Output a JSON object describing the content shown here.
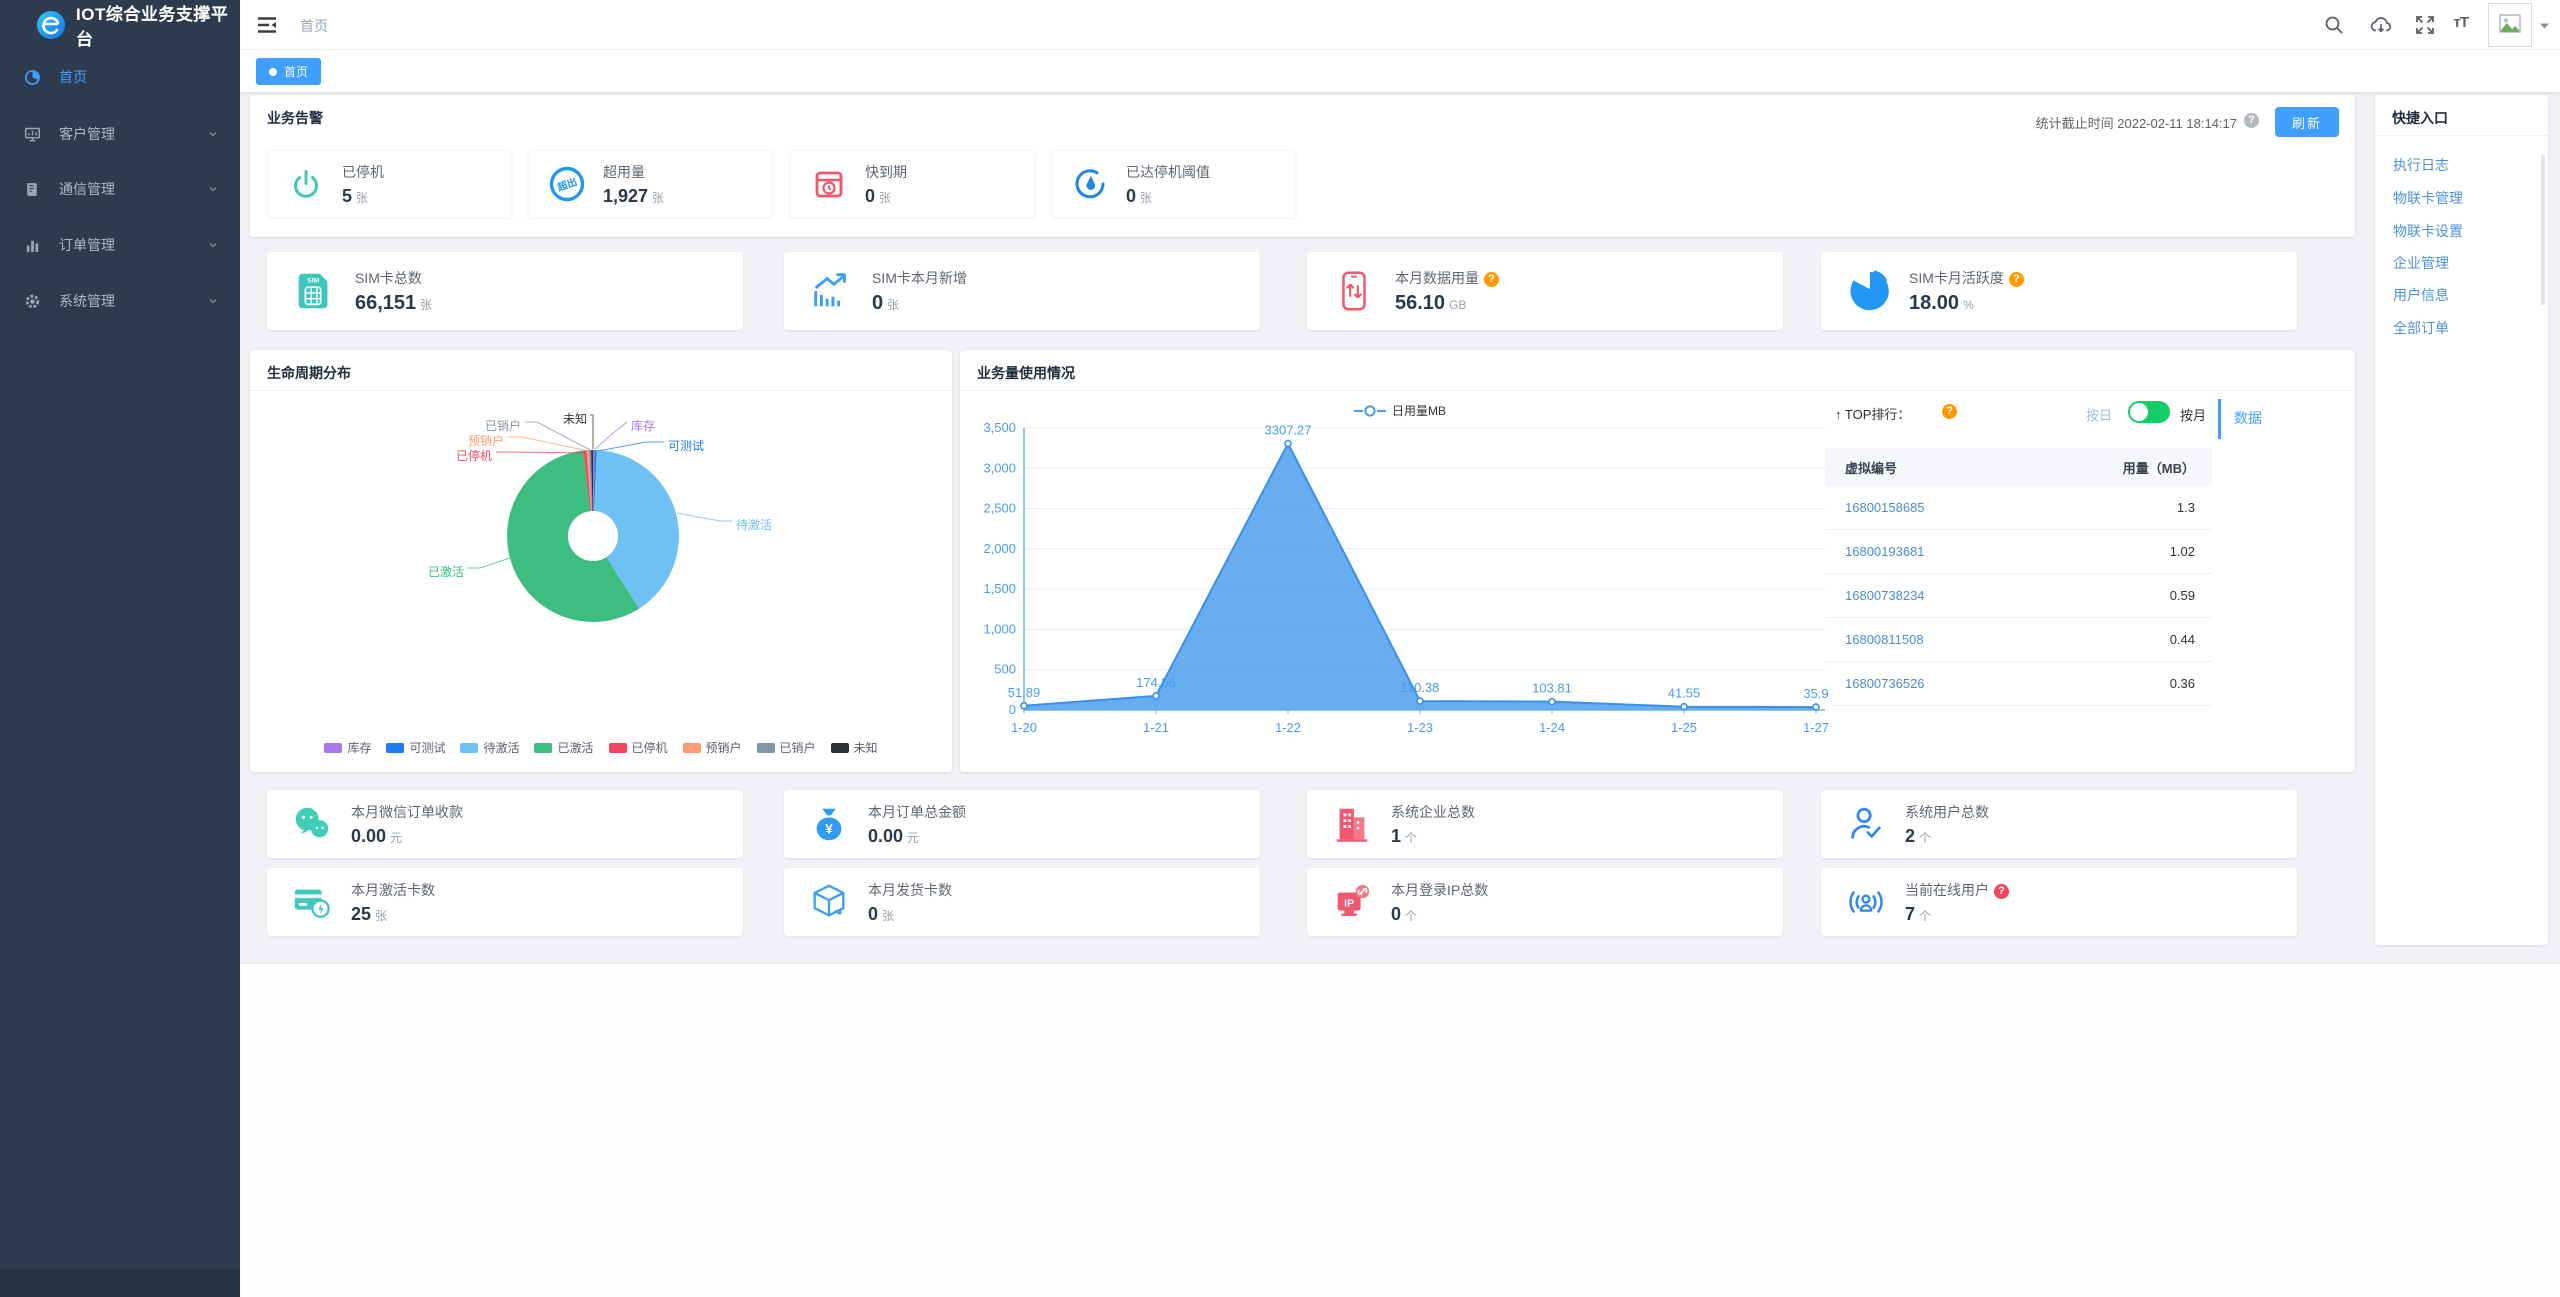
{
  "app": {
    "title": "IOT综合业务支撑平台"
  },
  "topbar": {
    "breadcrumb": "首页",
    "font_icon_text": "тT"
  },
  "tab": {
    "active_label": "首页"
  },
  "sidebar": {
    "items": [
      {
        "label": "首页"
      },
      {
        "label": "客户管理"
      },
      {
        "label": "通信管理"
      },
      {
        "label": "订单管理"
      },
      {
        "label": "系统管理"
      }
    ]
  },
  "alerts": {
    "title": "业务告警",
    "stat_time_label": "统计截止时间",
    "stat_time": "2022-02-11 18:14:17",
    "refresh_label": "刷新",
    "cards": [
      {
        "label": "已停机",
        "value": "5",
        "unit": "张"
      },
      {
        "label": "超用量",
        "value": "1,927",
        "unit": "张",
        "stamp_text": "超出"
      },
      {
        "label": "快到期",
        "value": "0",
        "unit": "张"
      },
      {
        "label": "已达停机阈值",
        "value": "0",
        "unit": "张"
      }
    ]
  },
  "sim_stats": {
    "cards": [
      {
        "label": "SIM卡总数",
        "value": "66,151",
        "unit": "张",
        "icon_text": "SIM"
      },
      {
        "label": "SIM卡本月新增",
        "value": "0",
        "unit": "张"
      },
      {
        "label": "本月数据用量",
        "value": "56.10",
        "unit": "GB",
        "has_help": true
      },
      {
        "label": "SIM卡月活跃度",
        "value": "18.00",
        "unit": "%",
        "has_help": true
      }
    ]
  },
  "top_rank": {
    "title": "↑ TOP排行：",
    "toggle_left": "按日",
    "toggle_right": "按月",
    "tab": "数据",
    "col_id": "虚拟编号",
    "col_usage": "用量（MB）",
    "rows": [
      {
        "id": "16800158685",
        "value": "1.3"
      },
      {
        "id": "16800193681",
        "value": "1.02"
      },
      {
        "id": "16800738234",
        "value": "0.59"
      },
      {
        "id": "16800811508",
        "value": "0.44"
      },
      {
        "id": "16800736526",
        "value": "0.36"
      }
    ]
  },
  "bottom_stats": {
    "row1": [
      {
        "label": "本月微信订单收款",
        "value": "0.00",
        "unit": "元"
      },
      {
        "label": "本月订单总金额",
        "value": "0.00",
        "unit": "元",
        "icon_text": "¥"
      },
      {
        "label": "系统企业总数",
        "value": "1",
        "unit": "个"
      },
      {
        "label": "系统用户总数",
        "value": "2",
        "unit": "个"
      }
    ],
    "row2": [
      {
        "label": "本月激活卡数",
        "value": "25",
        "unit": "张"
      },
      {
        "label": "本月发货卡数",
        "value": "0",
        "unit": "张"
      },
      {
        "label": "本月登录IP总数",
        "value": "0",
        "unit": "个",
        "icon_text": "IP"
      },
      {
        "label": "当前在线用户",
        "value": "7",
        "unit": "个"
      }
    ]
  },
  "quick_entry": {
    "title": "快捷入口",
    "links": [
      "执行日志",
      "物联卡管理",
      "物联卡设置",
      "企业管理",
      "用户信息",
      "全部订单"
    ]
  },
  "chart_data": [
    {
      "type": "pie",
      "title": "生命周期分布",
      "labels": [
        "库存",
        "可测试",
        "待激活",
        "已激活",
        "已停机",
        "预销户",
        "已销户",
        "未知"
      ],
      "values": [
        0.3,
        0.4,
        40.3,
        57.2,
        0.6,
        0.45,
        0.4,
        0.35
      ],
      "colors": [
        "#a57ae8",
        "#1f7bf4",
        "#6fc0f5",
        "#3dbd80",
        "#f0475f",
        "#ff9c73",
        "#8595a8",
        "#2b2f36"
      ],
      "legend_position": "bottom",
      "donut": true
    },
    {
      "type": "area",
      "title": "业务量使用情况",
      "series_name": "日用量MB",
      "x": [
        "1-20",
        "1-21",
        "1-22",
        "1-23",
        "1-24",
        "1-25",
        "1-27"
      ],
      "values": [
        51.89,
        174.56,
        3307.27,
        110.38,
        103.81,
        41.55,
        35.9
      ],
      "point_labels": [
        "51.89",
        "174.56",
        "3307.27",
        "110.38",
        "103.81",
        "41.55",
        "35.9"
      ],
      "ylim": [
        0,
        3500
      ],
      "yticks": [
        "0",
        "500",
        "1,000",
        "1,500",
        "2,000",
        "2,500",
        "3,000",
        "3,500"
      ],
      "grid": true,
      "legend_position": "top",
      "color": "#5fa9ef",
      "line_color": "#3a90e8",
      "axis_color": "#74b1f0",
      "label_color": "#4a9cf0"
    }
  ]
}
